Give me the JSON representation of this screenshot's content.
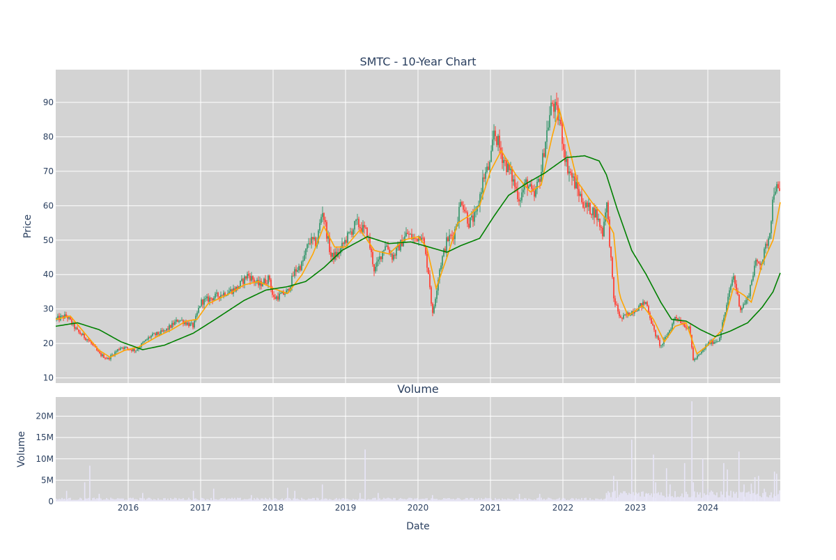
{
  "chart_data": [
    {
      "type": "candlestick",
      "title": "SMTC - 10-Year Chart",
      "ylabel": "Price",
      "xlabel": "",
      "ylim": [
        8.5,
        99.5
      ],
      "xlim": [
        2015.0,
        2025.0
      ],
      "x_ticks": [
        2016,
        2017,
        2018,
        2019,
        2020,
        2021,
        2022,
        2023,
        2024
      ],
      "x_tick_labels": [
        "2016",
        "2017",
        "2018",
        "2019",
        "2020",
        "2021",
        "2022",
        "2023",
        "2024"
      ],
      "y_ticks": [
        10,
        20,
        30,
        40,
        50,
        60,
        70,
        80,
        90
      ],
      "y_tick_labels": [
        "10",
        "20",
        "30",
        "40",
        "50",
        "60",
        "70",
        "80",
        "90"
      ],
      "grid": true,
      "colors": {
        "up": "#3d9970",
        "down": "#ff4136",
        "ma_fast": "#ffa500",
        "ma_slow": "#008000",
        "background": "#d3d3d3",
        "grid": "#ffffff"
      },
      "price_keypoints": [
        [
          2015.0,
          27.0
        ],
        [
          2015.15,
          28.0
        ],
        [
          2015.3,
          23.5
        ],
        [
          2015.45,
          21.0
        ],
        [
          2015.6,
          17.0
        ],
        [
          2015.72,
          15.5
        ],
        [
          2015.9,
          19.0
        ],
        [
          2016.1,
          18.0
        ],
        [
          2016.3,
          22.0
        ],
        [
          2016.5,
          23.5
        ],
        [
          2016.7,
          27.0
        ],
        [
          2016.9,
          25.0
        ],
        [
          2017.0,
          32.0
        ],
        [
          2017.25,
          34.0
        ],
        [
          2017.5,
          36.0
        ],
        [
          2017.65,
          40.0
        ],
        [
          2017.8,
          37.0
        ],
        [
          2017.95,
          39.0
        ],
        [
          2018.0,
          33.0
        ],
        [
          2018.2,
          35.0
        ],
        [
          2018.3,
          41.0
        ],
        [
          2018.4,
          43.0
        ],
        [
          2018.5,
          50.0
        ],
        [
          2018.6,
          49.0
        ],
        [
          2018.68,
          59.0
        ],
        [
          2018.8,
          45.0
        ],
        [
          2018.9,
          46.0
        ],
        [
          2019.0,
          50.0
        ],
        [
          2019.15,
          55.0
        ],
        [
          2019.3,
          52.0
        ],
        [
          2019.4,
          41.0
        ],
        [
          2019.55,
          49.0
        ],
        [
          2019.65,
          45.0
        ],
        [
          2019.85,
          52.0
        ],
        [
          2019.95,
          50.0
        ],
        [
          2020.05,
          52.0
        ],
        [
          2020.15,
          40.0
        ],
        [
          2020.2,
          28.0
        ],
        [
          2020.3,
          42.0
        ],
        [
          2020.4,
          50.0
        ],
        [
          2020.5,
          52.0
        ],
        [
          2020.6,
          62.0
        ],
        [
          2020.7,
          55.0
        ],
        [
          2020.8,
          57.0
        ],
        [
          2020.9,
          68.0
        ],
        [
          2021.0,
          72.0
        ],
        [
          2021.05,
          82.0
        ],
        [
          2021.15,
          75.0
        ],
        [
          2021.3,
          68.0
        ],
        [
          2021.4,
          62.0
        ],
        [
          2021.5,
          67.0
        ],
        [
          2021.6,
          62.0
        ],
        [
          2021.7,
          70.0
        ],
        [
          2021.75,
          78.0
        ],
        [
          2021.85,
          90.0
        ],
        [
          2021.95,
          85.0
        ],
        [
          2022.05,
          72.0
        ],
        [
          2022.15,
          67.0
        ],
        [
          2022.3,
          60.0
        ],
        [
          2022.45,
          58.0
        ],
        [
          2022.55,
          52.0
        ],
        [
          2022.6,
          62.0
        ],
        [
          2022.65,
          48.0
        ],
        [
          2022.7,
          33.0
        ],
        [
          2022.8,
          27.0
        ],
        [
          2023.0,
          30.0
        ],
        [
          2023.15,
          32.0
        ],
        [
          2023.25,
          24.0
        ],
        [
          2023.35,
          19.0
        ],
        [
          2023.5,
          25.0
        ],
        [
          2023.55,
          28.0
        ],
        [
          2023.65,
          26.0
        ],
        [
          2023.75,
          24.0
        ],
        [
          2023.8,
          15.0
        ],
        [
          2023.9,
          17.0
        ],
        [
          2024.0,
          20.0
        ],
        [
          2024.15,
          21.0
        ],
        [
          2024.25,
          30.0
        ],
        [
          2024.35,
          40.0
        ],
        [
          2024.45,
          30.0
        ],
        [
          2024.55,
          33.0
        ],
        [
          2024.65,
          43.0
        ],
        [
          2024.75,
          44.0
        ],
        [
          2024.85,
          52.0
        ],
        [
          2024.92,
          66.0
        ],
        [
          2025.0,
          63.0
        ]
      ],
      "ma_fast_keypoints": [
        [
          2015.0,
          27.0
        ],
        [
          2015.2,
          28.0
        ],
        [
          2015.4,
          23.0
        ],
        [
          2015.6,
          18.0
        ],
        [
          2015.75,
          16.0
        ],
        [
          2015.95,
          18.0
        ],
        [
          2016.15,
          19.0
        ],
        [
          2016.4,
          22.0
        ],
        [
          2016.6,
          24.0
        ],
        [
          2016.8,
          26.5
        ],
        [
          2016.95,
          27.0
        ],
        [
          2017.1,
          31.5
        ],
        [
          2017.4,
          34.5
        ],
        [
          2017.6,
          37.0
        ],
        [
          2017.8,
          38.0
        ],
        [
          2018.0,
          36.0
        ],
        [
          2018.2,
          34.5
        ],
        [
          2018.4,
          40.0
        ],
        [
          2018.55,
          46.0
        ],
        [
          2018.7,
          54.0
        ],
        [
          2018.85,
          48.0
        ],
        [
          2019.0,
          48.0
        ],
        [
          2019.2,
          53.0
        ],
        [
          2019.4,
          47.0
        ],
        [
          2019.6,
          46.0
        ],
        [
          2019.8,
          50.0
        ],
        [
          2020.0,
          51.0
        ],
        [
          2020.12,
          48.0
        ],
        [
          2020.25,
          36.0
        ],
        [
          2020.4,
          45.0
        ],
        [
          2020.55,
          55.0
        ],
        [
          2020.7,
          57.0
        ],
        [
          2020.85,
          60.0
        ],
        [
          2021.0,
          70.0
        ],
        [
          2021.15,
          76.0
        ],
        [
          2021.35,
          69.0
        ],
        [
          2021.55,
          64.0
        ],
        [
          2021.7,
          66.0
        ],
        [
          2021.85,
          80.0
        ],
        [
          2021.95,
          88.0
        ],
        [
          2022.05,
          80.0
        ],
        [
          2022.2,
          67.0
        ],
        [
          2022.4,
          61.0
        ],
        [
          2022.6,
          56.0
        ],
        [
          2022.7,
          52.0
        ],
        [
          2022.78,
          34.0
        ],
        [
          2022.9,
          28.0
        ],
        [
          2023.1,
          31.0
        ],
        [
          2023.25,
          27.0
        ],
        [
          2023.4,
          20.5
        ],
        [
          2023.55,
          25.0
        ],
        [
          2023.7,
          26.0
        ],
        [
          2023.85,
          17.0
        ],
        [
          2024.0,
          19.5
        ],
        [
          2024.2,
          24.0
        ],
        [
          2024.35,
          36.0
        ],
        [
          2024.5,
          34.0
        ],
        [
          2024.6,
          32.0
        ],
        [
          2024.75,
          43.0
        ],
        [
          2024.9,
          50.0
        ],
        [
          2025.0,
          61.0
        ]
      ],
      "ma_slow_keypoints": [
        [
          2015.0,
          25.0
        ],
        [
          2015.3,
          26.0
        ],
        [
          2015.6,
          24.0
        ],
        [
          2015.9,
          20.5
        ],
        [
          2016.2,
          18.2
        ],
        [
          2016.5,
          19.5
        ],
        [
          2016.9,
          23.0
        ],
        [
          2017.2,
          27.0
        ],
        [
          2017.6,
          32.5
        ],
        [
          2017.9,
          35.5
        ],
        [
          2018.2,
          36.5
        ],
        [
          2018.45,
          38.0
        ],
        [
          2018.7,
          42.0
        ],
        [
          2018.95,
          47.0
        ],
        [
          2019.3,
          51.0
        ],
        [
          2019.6,
          49.0
        ],
        [
          2019.9,
          49.5
        ],
        [
          2020.15,
          48.0
        ],
        [
          2020.4,
          46.5
        ],
        [
          2020.6,
          48.5
        ],
        [
          2020.85,
          50.5
        ],
        [
          2021.05,
          57.0
        ],
        [
          2021.25,
          63.0
        ],
        [
          2021.5,
          66.5
        ],
        [
          2021.75,
          69.5
        ],
        [
          2022.05,
          74.0
        ],
        [
          2022.3,
          74.5
        ],
        [
          2022.5,
          73.0
        ],
        [
          2022.6,
          69.0
        ],
        [
          2022.75,
          59.0
        ],
        [
          2022.95,
          47.0
        ],
        [
          2023.15,
          40.0
        ],
        [
          2023.35,
          32.0
        ],
        [
          2023.5,
          27.0
        ],
        [
          2023.7,
          26.5
        ],
        [
          2023.9,
          24.0
        ],
        [
          2024.1,
          22.0
        ],
        [
          2024.3,
          23.5
        ],
        [
          2024.55,
          26.0
        ],
        [
          2024.75,
          30.5
        ],
        [
          2024.9,
          35.0
        ],
        [
          2025.0,
          40.5
        ]
      ]
    },
    {
      "type": "bar",
      "title": "Volume",
      "ylabel": "Volume",
      "xlabel": "Date",
      "ylim": [
        0,
        24500000
      ],
      "xlim": [
        2015.0,
        2025.0
      ],
      "x_ticks": [
        2016,
        2017,
        2018,
        2019,
        2020,
        2021,
        2022,
        2023,
        2024
      ],
      "x_tick_labels": [
        "2016",
        "2017",
        "2018",
        "2019",
        "2020",
        "2021",
        "2022",
        "2023",
        "2024"
      ],
      "y_ticks": [
        0,
        5000000,
        10000000,
        15000000,
        20000000
      ],
      "y_tick_labels": [
        "0",
        "5M",
        "10M",
        "15M",
        "20M"
      ],
      "grid": true,
      "colors": {
        "bar": "#e8e6f8",
        "background": "#d3d3d3",
        "grid": "#ffffff"
      },
      "volume_spikes": [
        [
          2015.15,
          2500000
        ],
        [
          2015.4,
          4500000
        ],
        [
          2015.47,
          8400000
        ],
        [
          2015.6,
          1800000
        ],
        [
          2016.2,
          2000000
        ],
        [
          2016.9,
          2500000
        ],
        [
          2017.18,
          3000000
        ],
        [
          2017.7,
          1500000
        ],
        [
          2018.2,
          3200000
        ],
        [
          2018.3,
          2500000
        ],
        [
          2018.68,
          4000000
        ],
        [
          2019.2,
          2000000
        ],
        [
          2019.27,
          12200000
        ],
        [
          2019.45,
          2000000
        ],
        [
          2020.2,
          1500000
        ],
        [
          2021.4,
          1800000
        ],
        [
          2021.68,
          1800000
        ],
        [
          2022.6,
          2000000
        ],
        [
          2022.7,
          6000000
        ],
        [
          2022.75,
          4800000
        ],
        [
          2022.95,
          14500000
        ],
        [
          2023.15,
          2000000
        ],
        [
          2023.25,
          11000000
        ],
        [
          2023.28,
          4500000
        ],
        [
          2023.43,
          7800000
        ],
        [
          2023.48,
          4000000
        ],
        [
          2023.68,
          9000000
        ],
        [
          2023.78,
          23500000
        ],
        [
          2023.8,
          4500000
        ],
        [
          2023.93,
          10000000
        ],
        [
          2024.0,
          3000000
        ],
        [
          2024.22,
          9000000
        ],
        [
          2024.27,
          7500000
        ],
        [
          2024.43,
          11700000
        ],
        [
          2024.5,
          4000000
        ],
        [
          2024.6,
          4200000
        ],
        [
          2024.65,
          5700000
        ],
        [
          2024.7,
          6000000
        ],
        [
          2024.78,
          3000000
        ],
        [
          2024.92,
          7000000
        ],
        [
          2024.95,
          6500000
        ]
      ]
    }
  ]
}
